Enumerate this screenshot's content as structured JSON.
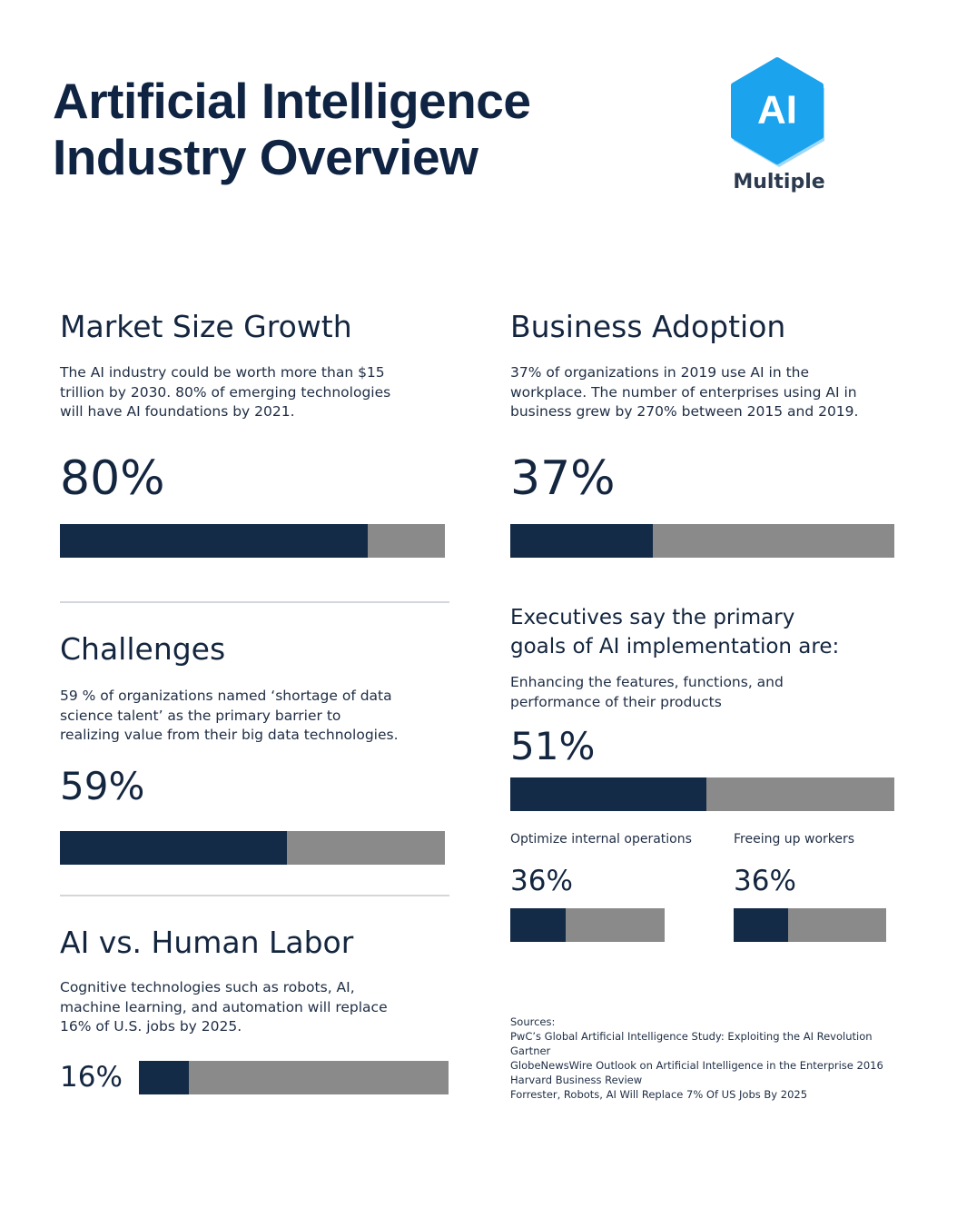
{
  "header": {
    "title_lines": [
      "Artificial Intelligence",
      "Industry Overview"
    ],
    "logo": {
      "mark": "AI",
      "name": "Multiple"
    }
  },
  "sections": [
    {
      "heading": "Market Size Growth",
      "body_lines": [
        "The AI industry could be worth more than $15",
        "trillion by 2030. 80% of emerging technologies",
        "will have AI foundations by 2021."
      ],
      "stat": {
        "value": 80,
        "value_label": "80%"
      }
    },
    {
      "heading": "Challenges",
      "body_lines": [
        "59 % of organizations named ‘shortage of data",
        "science talent’ as the primary barrier to",
        "realizing value from their big data technologies."
      ],
      "stat": {
        "value": 59,
        "value_label": "59%"
      }
    },
    {
      "heading": "AI vs. Human Labor",
      "body_lines": [
        "Cognitive technologies such as robots, AI,",
        "machine learning, and automation will replace",
        "16% of U.S. jobs by 2025."
      ],
      "stat": {
        "value": 16,
        "value_label": "16%"
      }
    },
    {
      "heading": "Business Adoption",
      "body_lines": [
        "37% of organizations in 2019 use AI in the",
        "workplace. The number of enterprises using AI in",
        "business grew by 270% between 2015 and 2019."
      ],
      "stat": {
        "value": 37,
        "value_label": "37%"
      }
    }
  ],
  "goals": {
    "heading_lines": [
      "Executives say the primary",
      "goals of AI implementation are:"
    ],
    "items": [
      {
        "label_lines": [
          "Enhancing the features, functions, and",
          "performance of their products"
        ],
        "value": 51,
        "value_label": "51%"
      },
      {
        "label_lines": [
          "Optimize internal operations"
        ],
        "value": 36,
        "value_label": "36%"
      },
      {
        "label_lines": [
          "Freeing up workers"
        ],
        "value": 36,
        "value_label": "36%"
      }
    ]
  },
  "sources": {
    "label": "Sources:",
    "items": [
      "PwC’s Global Artificial Intelligence Study: Exploiting the AI Revolution",
      "Gartner",
      "GlobeNewsWire Outlook on Artificial Intelligence in the Enterprise 2016",
      "Harvard Business Review",
      "Forrester, Robots, AI Will Replace 7% Of US Jobs By 2025"
    ]
  }
}
